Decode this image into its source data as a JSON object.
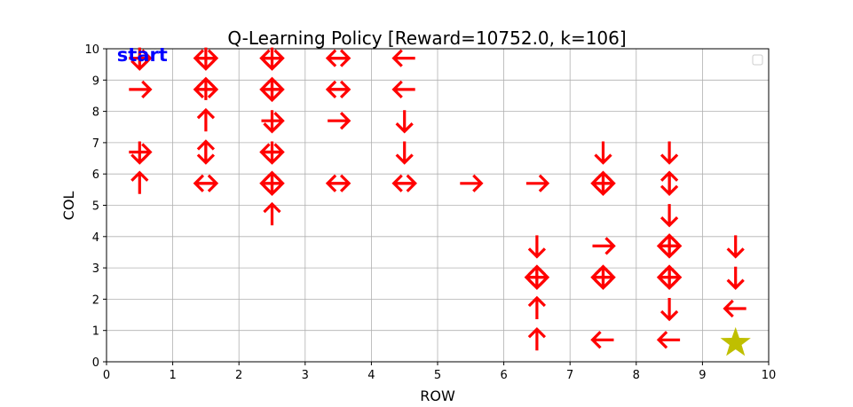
{
  "chart_data": {
    "type": "scatter",
    "title": "Q-Learning Policy [Reward=10752.0, k=106]",
    "xlabel": "ROW",
    "ylabel": "COL",
    "xlim": [
      0,
      10
    ],
    "ylim": [
      0,
      10
    ],
    "xticks": [
      "0",
      "1",
      "2",
      "3",
      "4",
      "5",
      "6",
      "7",
      "8",
      "9",
      "10"
    ],
    "yticks": [
      "0",
      "1",
      "2",
      "3",
      "4",
      "5",
      "6",
      "7",
      "8",
      "9",
      "10"
    ],
    "grid": true,
    "legend": "top-right",
    "arrow_color": "#ff0000",
    "goal_color": "#bfbf00",
    "start_color": "#0000ff",
    "start": {
      "label": "start",
      "x": 0.5,
      "y": 9.8
    },
    "goal": {
      "x": 9.5,
      "y": 0.6,
      "marker": "star"
    },
    "arrows": [
      {
        "x": 0.5,
        "y": 9.7,
        "dirs": [
          "right",
          "down"
        ]
      },
      {
        "x": 0.5,
        "y": 8.7,
        "dirs": [
          "right"
        ]
      },
      {
        "x": 0.5,
        "y": 6.7,
        "dirs": [
          "right",
          "down"
        ]
      },
      {
        "x": 0.5,
        "y": 5.7,
        "dirs": [
          "up"
        ]
      },
      {
        "x": 1.5,
        "y": 9.7,
        "dirs": [
          "right",
          "left",
          "down"
        ]
      },
      {
        "x": 1.5,
        "y": 8.7,
        "dirs": [
          "right",
          "left",
          "up"
        ]
      },
      {
        "x": 1.5,
        "y": 7.7,
        "dirs": [
          "up"
        ]
      },
      {
        "x": 1.5,
        "y": 6.7,
        "dirs": [
          "up",
          "down"
        ]
      },
      {
        "x": 1.5,
        "y": 5.7,
        "dirs": [
          "left",
          "right"
        ]
      },
      {
        "x": 2.5,
        "y": 9.7,
        "dirs": [
          "right",
          "left",
          "down"
        ]
      },
      {
        "x": 2.5,
        "y": 8.7,
        "dirs": [
          "right",
          "left",
          "up",
          "down"
        ]
      },
      {
        "x": 2.5,
        "y": 7.7,
        "dirs": [
          "right",
          "down"
        ]
      },
      {
        "x": 2.5,
        "y": 6.7,
        "dirs": [
          "left",
          "right",
          "down"
        ]
      },
      {
        "x": 2.5,
        "y": 5.7,
        "dirs": [
          "right",
          "left",
          "down",
          "up"
        ]
      },
      {
        "x": 2.5,
        "y": 4.7,
        "dirs": [
          "up"
        ]
      },
      {
        "x": 3.5,
        "y": 9.7,
        "dirs": [
          "left",
          "right"
        ]
      },
      {
        "x": 3.5,
        "y": 8.7,
        "dirs": [
          "left",
          "right"
        ]
      },
      {
        "x": 3.5,
        "y": 7.7,
        "dirs": [
          "right"
        ]
      },
      {
        "x": 3.5,
        "y": 5.7,
        "dirs": [
          "left",
          "right"
        ]
      },
      {
        "x": 4.5,
        "y": 9.7,
        "dirs": [
          "left"
        ]
      },
      {
        "x": 4.5,
        "y": 8.7,
        "dirs": [
          "left"
        ]
      },
      {
        "x": 4.5,
        "y": 7.7,
        "dirs": [
          "down"
        ]
      },
      {
        "x": 4.5,
        "y": 6.7,
        "dirs": [
          "down"
        ]
      },
      {
        "x": 4.5,
        "y": 5.7,
        "dirs": [
          "left",
          "right"
        ]
      },
      {
        "x": 5.5,
        "y": 5.7,
        "dirs": [
          "right"
        ]
      },
      {
        "x": 6.5,
        "y": 5.7,
        "dirs": [
          "right"
        ]
      },
      {
        "x": 6.5,
        "y": 3.7,
        "dirs": [
          "down"
        ]
      },
      {
        "x": 6.5,
        "y": 2.7,
        "dirs": [
          "right",
          "left",
          "up",
          "down"
        ]
      },
      {
        "x": 6.5,
        "y": 1.7,
        "dirs": [
          "up"
        ]
      },
      {
        "x": 6.5,
        "y": 0.7,
        "dirs": [
          "up"
        ]
      },
      {
        "x": 7.5,
        "y": 6.7,
        "dirs": [
          "down"
        ]
      },
      {
        "x": 7.5,
        "y": 5.7,
        "dirs": [
          "right",
          "left",
          "up",
          "down"
        ]
      },
      {
        "x": 7.5,
        "y": 3.7,
        "dirs": [
          "right"
        ]
      },
      {
        "x": 7.5,
        "y": 2.7,
        "dirs": [
          "right",
          "left",
          "up",
          "down"
        ]
      },
      {
        "x": 7.5,
        "y": 0.7,
        "dirs": [
          "left"
        ]
      },
      {
        "x": 8.5,
        "y": 6.7,
        "dirs": [
          "down"
        ]
      },
      {
        "x": 8.5,
        "y": 5.7,
        "dirs": [
          "up",
          "down"
        ]
      },
      {
        "x": 8.5,
        "y": 4.7,
        "dirs": [
          "down"
        ]
      },
      {
        "x": 8.5,
        "y": 3.7,
        "dirs": [
          "right",
          "left",
          "up",
          "down"
        ]
      },
      {
        "x": 8.5,
        "y": 2.7,
        "dirs": [
          "right",
          "left",
          "up",
          "down"
        ]
      },
      {
        "x": 8.5,
        "y": 1.7,
        "dirs": [
          "down"
        ]
      },
      {
        "x": 8.5,
        "y": 0.7,
        "dirs": [
          "left"
        ]
      },
      {
        "x": 9.5,
        "y": 3.7,
        "dirs": [
          "down"
        ]
      },
      {
        "x": 9.5,
        "y": 2.7,
        "dirs": [
          "down"
        ]
      },
      {
        "x": 9.5,
        "y": 1.7,
        "dirs": [
          "left"
        ]
      }
    ]
  }
}
